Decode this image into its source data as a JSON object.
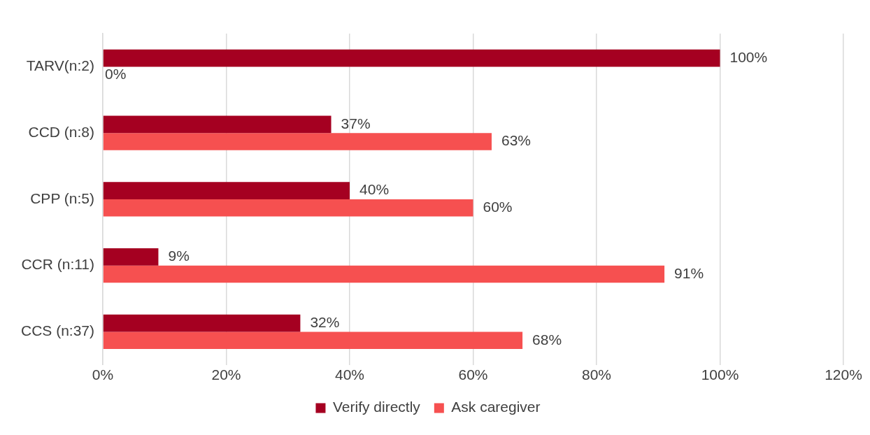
{
  "chart_data": {
    "type": "bar",
    "orientation": "horizontal",
    "categories": [
      "TARV(n:2)",
      "CCD (n:8)",
      "CPP (n:5)",
      "CCR (n:11)",
      "CCS (n:37)"
    ],
    "series": [
      {
        "name": "Verify directly",
        "color": "#a50021",
        "values": [
          100,
          37,
          40,
          9,
          32
        ],
        "value_labels": [
          "100%",
          "37%",
          "40%",
          "9%",
          "32%"
        ]
      },
      {
        "name": "Ask caregiver",
        "color": "#f65050",
        "values": [
          0,
          63,
          60,
          91,
          68
        ],
        "value_labels": [
          "0%",
          "63%",
          "60%",
          "91%",
          "68%"
        ]
      }
    ],
    "xlim": [
      0,
      120
    ],
    "xticks": [
      {
        "value": 0,
        "label": "0%"
      },
      {
        "value": 20,
        "label": "20%"
      },
      {
        "value": 40,
        "label": "40%"
      },
      {
        "value": 60,
        "label": "60%"
      },
      {
        "value": 80,
        "label": "80%"
      },
      {
        "value": 100,
        "label": "100%"
      },
      {
        "value": 120,
        "label": "120%"
      }
    ],
    "grid": "x",
    "legend": "bottom"
  }
}
